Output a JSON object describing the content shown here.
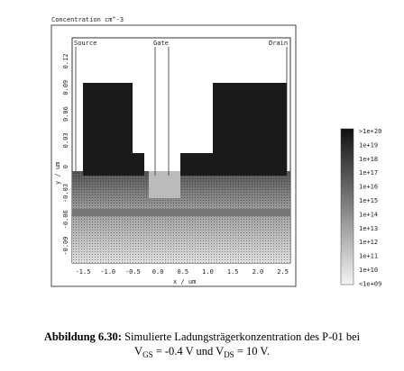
{
  "figure": {
    "title": "Concentration cm^-3",
    "region_labels": [
      "Source",
      "Gate",
      "Drain"
    ],
    "x_label": "x / um",
    "y_label": "y / um",
    "x_ticks": [
      "-1.5",
      "-1.0",
      "-0.5",
      "0.0",
      "0.5",
      "1.0",
      "1.5",
      "2.0",
      "2.5"
    ],
    "y_ticks": [
      "0.12",
      "0.09",
      "0.06",
      "0.03",
      "0",
      "-0.03",
      "-0.06",
      "-0.09"
    ],
    "colorbar_labels": [
      ">1e+20",
      "1e+19",
      "1e+18",
      "1e+17",
      "1e+16",
      "1e+15",
      "1e+14",
      "1e+13",
      "1e+12",
      "1e+11",
      "1e+10",
      "<1e+09"
    ]
  },
  "caption": {
    "label": "Abbildung 6.30:",
    "line1": "Simulierte Ladungsträgerkonzentration des P-01 bei",
    "line2": [
      "V",
      "GS",
      " = -0.4 V und V",
      "DS",
      " = 10 V."
    ]
  }
}
